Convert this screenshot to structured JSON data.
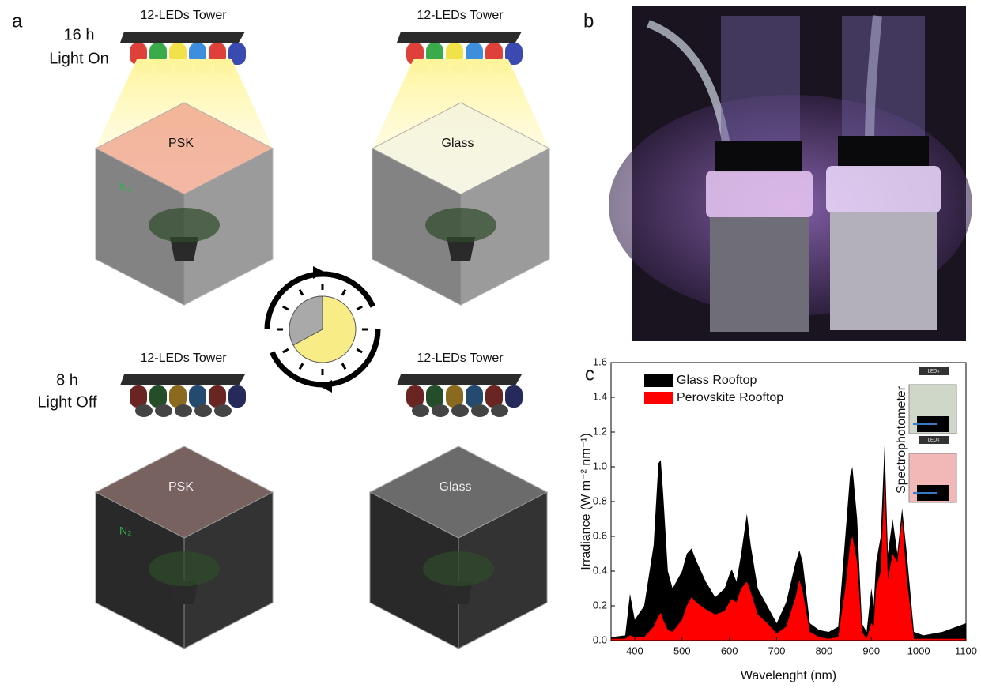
{
  "panels": {
    "a": "a",
    "b": "b",
    "c": "c"
  },
  "panel_a": {
    "top_condition": {
      "hours": "16 h",
      "state": "Light On"
    },
    "bottom_condition": {
      "hours": "8 h",
      "state": "Light Off"
    },
    "towers": [
      "12-LEDs Tower",
      "12-LEDs Tower",
      "12-LEDs Tower",
      "12-LEDs Tower"
    ],
    "boxes": [
      "PSK",
      "Glass",
      "PSK",
      "Glass"
    ],
    "gas": [
      "N₂",
      "N₂"
    ]
  },
  "inset": {
    "label": "Spectrophotometer",
    "leds": [
      "LEDs",
      "LEDs"
    ]
  },
  "chart_data": {
    "type": "area",
    "xlabel": "Wavelenght (nm)",
    "ylabel": "Irradiance (W m⁻² nm⁻¹)",
    "x": [
      350,
      380,
      390,
      400,
      420,
      440,
      450,
      455,
      460,
      470,
      480,
      500,
      510,
      520,
      530,
      550,
      570,
      590,
      600,
      605,
      615,
      625,
      637,
      645,
      660,
      680,
      700,
      720,
      740,
      748,
      755,
      770,
      790,
      810,
      830,
      845,
      855,
      860,
      870,
      880,
      890,
      900,
      905,
      910,
      920,
      928,
      935,
      945,
      955,
      965,
      975,
      990,
      1010,
      1050,
      1080,
      1100
    ],
    "series": [
      {
        "name": "Glass Rooftop",
        "color": "#000000",
        "values": [
          0.02,
          0.03,
          0.27,
          0.12,
          0.2,
          0.55,
          1.02,
          1.04,
          0.85,
          0.4,
          0.3,
          0.4,
          0.5,
          0.53,
          0.46,
          0.34,
          0.25,
          0.3,
          0.38,
          0.41,
          0.34,
          0.5,
          0.73,
          0.55,
          0.3,
          0.2,
          0.1,
          0.22,
          0.45,
          0.52,
          0.45,
          0.1,
          0.06,
          0.05,
          0.08,
          0.6,
          0.95,
          1.0,
          0.7,
          0.1,
          0.05,
          0.3,
          0.2,
          0.45,
          0.6,
          1.13,
          0.5,
          0.7,
          0.5,
          0.76,
          0.5,
          0.05,
          0.03,
          0.05,
          0.08,
          0.1
        ]
      },
      {
        "name": "Perovskite Rooftop",
        "color": "#ff0000",
        "values": [
          0.01,
          0.01,
          0.03,
          0.02,
          0.02,
          0.08,
          0.14,
          0.16,
          0.12,
          0.06,
          0.05,
          0.12,
          0.2,
          0.25,
          0.22,
          0.18,
          0.15,
          0.17,
          0.22,
          0.24,
          0.22,
          0.3,
          0.34,
          0.28,
          0.15,
          0.1,
          0.04,
          0.08,
          0.25,
          0.35,
          0.28,
          0.05,
          0.02,
          0.01,
          0.02,
          0.3,
          0.55,
          0.6,
          0.45,
          0.05,
          0.01,
          0.1,
          0.08,
          0.3,
          0.4,
          0.93,
          0.35,
          0.5,
          0.45,
          0.7,
          0.35,
          0.01,
          0.01,
          0.01,
          0.01,
          0.01
        ]
      }
    ],
    "xlim": [
      350,
      1100
    ],
    "xticks": [
      400,
      500,
      600,
      700,
      800,
      900,
      1000,
      1100
    ],
    "ylim": [
      0,
      1.6
    ],
    "yticks": [
      {
        "value": 0,
        "label": "0.0"
      },
      0.2,
      0.4,
      0.6,
      0.8,
      {
        "value": 1,
        "label": "1.0"
      },
      1.2,
      1.4,
      1.6
    ],
    "legend": "top-left"
  }
}
